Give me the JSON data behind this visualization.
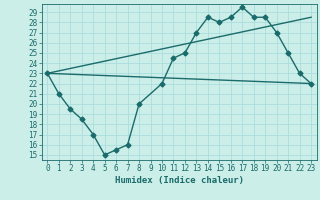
{
  "xlabel": "Humidex (Indice chaleur)",
  "bg_color": "#cceee8",
  "grid_color": "#aadddd",
  "line_color": "#1a6b6b",
  "xlim": [
    -0.5,
    23.5
  ],
  "ylim": [
    14.5,
    29.8
  ],
  "xticks": [
    0,
    1,
    2,
    3,
    4,
    5,
    6,
    7,
    8,
    9,
    10,
    11,
    12,
    13,
    14,
    15,
    16,
    17,
    18,
    19,
    20,
    21,
    22,
    23
  ],
  "yticks": [
    15,
    16,
    17,
    18,
    19,
    20,
    21,
    22,
    23,
    24,
    25,
    26,
    27,
    28,
    29
  ],
  "line1_x": [
    0,
    1,
    2,
    3,
    4,
    5,
    6,
    7,
    8,
    10,
    11,
    12,
    13,
    14,
    15,
    16,
    17,
    18,
    19,
    20,
    21,
    22,
    23
  ],
  "line1_y": [
    23,
    21,
    19.5,
    18.5,
    17,
    15,
    15.5,
    16,
    20,
    22,
    24.5,
    25,
    27,
    28.5,
    28,
    28.5,
    29.5,
    28.5,
    28.5,
    27,
    25,
    23,
    22
  ],
  "line2_x": [
    0,
    23
  ],
  "line2_y": [
    23,
    22
  ],
  "line3_x": [
    0,
    23
  ],
  "line3_y": [
    23,
    28.5
  ],
  "marker": "D",
  "markersize": 2.5,
  "linewidth": 1.0,
  "tick_fontsize": 5.5,
  "xlabel_fontsize": 6.5
}
